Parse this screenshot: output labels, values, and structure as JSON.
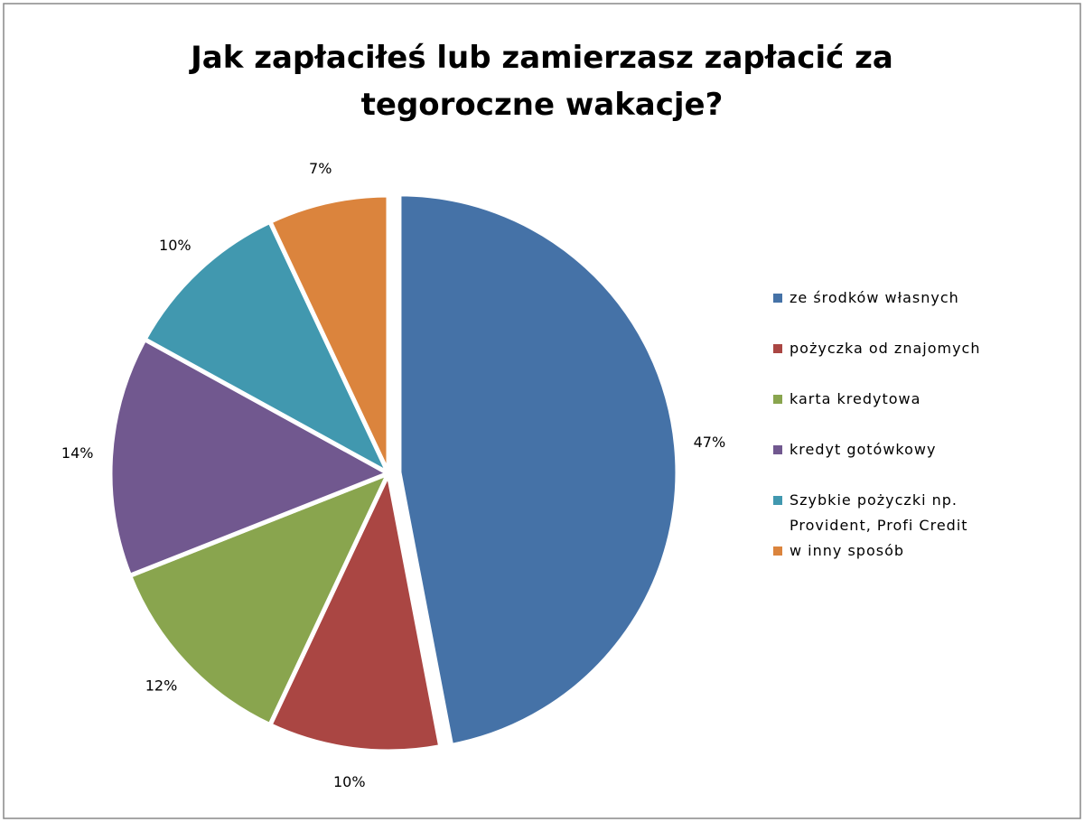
{
  "chart_data": {
    "type": "pie",
    "title": "Jak zapłaciłeś lub zamierzasz zapłacić za tegoroczne wakacje?",
    "categories": [
      "ze środków własnych",
      "pożyczka od znajomych",
      "karta kredytowa",
      "kredyt gotówkowy",
      "Szybkie pożyczki np. Provident, Profi Credit",
      "w inny sposób"
    ],
    "values": [
      47,
      10,
      12,
      14,
      10,
      7
    ],
    "value_labels": [
      "47%",
      "10%",
      "12%",
      "14%",
      "10%",
      "7%"
    ],
    "colors": [
      "#4572a7",
      "#aa4643",
      "#89a54e",
      "#71588f",
      "#4198af",
      "#db843d"
    ],
    "legend": "right"
  }
}
